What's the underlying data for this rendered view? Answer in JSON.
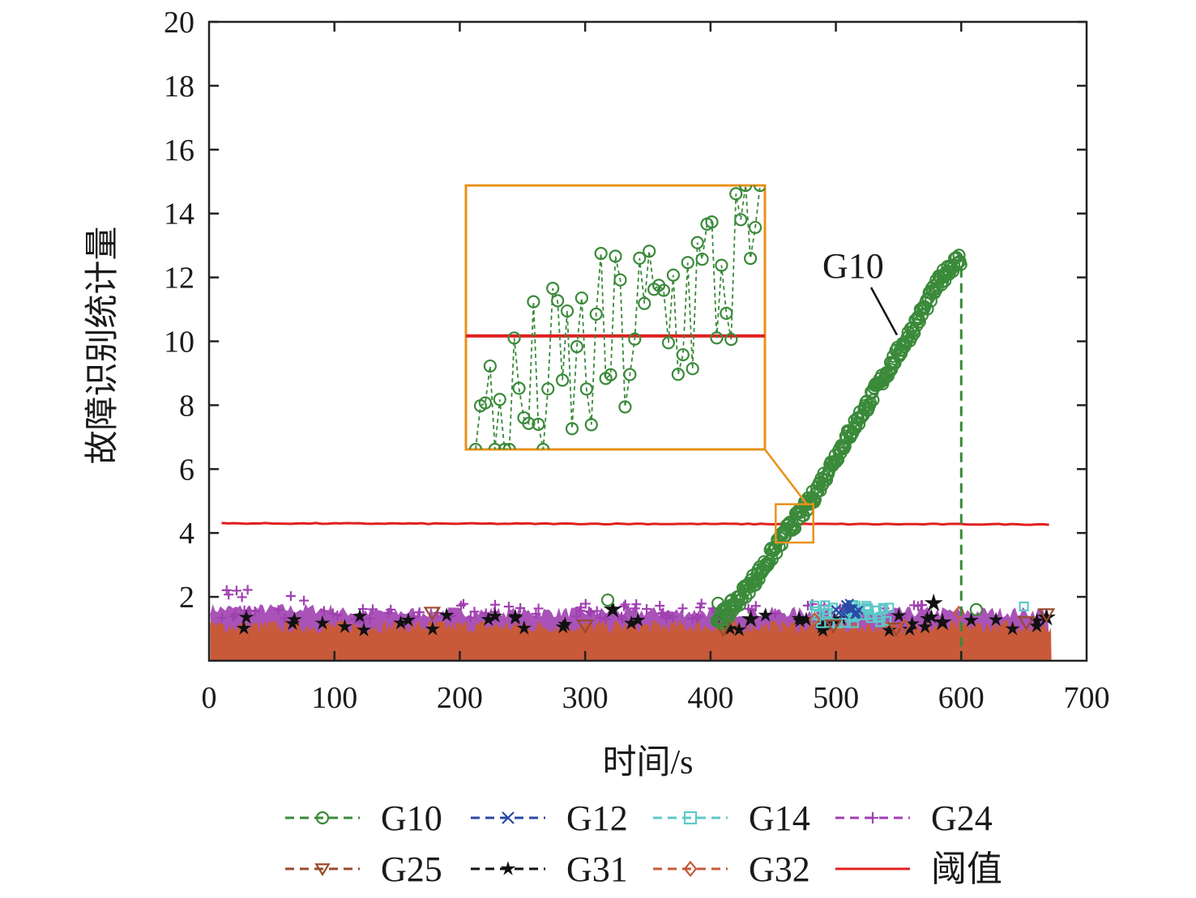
{
  "chart_data": {
    "type": "line",
    "title": "",
    "xlabel": "时间/s",
    "ylabel": "故障识别统计量",
    "xlim": [
      0,
      700
    ],
    "ylim": [
      0,
      20
    ],
    "xticks": [
      0,
      100,
      200,
      300,
      400,
      500,
      600,
      700
    ],
    "yticks": [
      2,
      4,
      6,
      8,
      10,
      12,
      14,
      16,
      18,
      20
    ],
    "xtick_labels": [
      "0",
      "100",
      "200",
      "300",
      "400",
      "500",
      "600",
      "700"
    ],
    "ytick_labels": [
      "2",
      "4",
      "6",
      "8",
      "10",
      "12",
      "14",
      "16",
      "18",
      "20"
    ],
    "grid": false,
    "legend_position": "bottom",
    "series": [
      {
        "name": "G10",
        "color": "#3a8a3a",
        "marker": "circle",
        "line": "dashed",
        "x": [
          0,
          100,
          200,
          300,
          400,
          410,
          420,
          440,
          460,
          480,
          500,
          520,
          540,
          560,
          580,
          590,
          600
        ],
        "y": [
          0.9,
          0.9,
          0.95,
          0.9,
          1.2,
          1.4,
          1.8,
          2.8,
          4.0,
          5.0,
          6.4,
          7.7,
          9.0,
          10.3,
          11.7,
          12.3,
          12.6
        ],
        "note": "statistic rises linearly after t≈410s and crosses threshold near t≈465s"
      },
      {
        "name": "G12",
        "color": "#2a4aa8",
        "marker": "x",
        "line": "dashed",
        "x": [
          500,
          505,
          510,
          520
        ],
        "y": [
          1.8,
          1.5,
          1.4,
          1.6
        ]
      },
      {
        "name": "G14",
        "color": "#5cc8c8",
        "marker": "square",
        "line": "dashed",
        "x": [
          480,
          500,
          520,
          540,
          650
        ],
        "y": [
          1.8,
          1.5,
          1.7,
          1.9,
          1.7
        ]
      },
      {
        "name": "G24",
        "color": "#a040b0",
        "marker": "plus",
        "line": "dashed",
        "x": [
          0,
          50,
          80,
          150,
          250,
          350,
          400,
          450,
          480,
          580
        ],
        "y": [
          2.3,
          1.9,
          2.4,
          1.6,
          1.6,
          1.7,
          1.6,
          1.5,
          1.2,
          2.0
        ]
      },
      {
        "name": "G25",
        "color": "#9a4a2a",
        "marker": "triangle-down",
        "line": "dashed",
        "x": [
          175,
          300,
          650,
          670
        ],
        "y": [
          1.5,
          1.1,
          1.2,
          1.4
        ]
      },
      {
        "name": "G31",
        "color": "#111111",
        "marker": "star",
        "line": "dashed",
        "x": [
          320,
          430,
          580,
          670
        ],
        "y": [
          1.6,
          1.3,
          1.8,
          1.3
        ]
      },
      {
        "name": "G32",
        "color": "#c85a3a",
        "marker": "diamond",
        "line": "dashed",
        "x": [
          0,
          100,
          200,
          300,
          400,
          500,
          600,
          670
        ],
        "y": [
          0.9,
          1.0,
          0.9,
          1.0,
          0.9,
          1.0,
          1.1,
          0.9
        ]
      },
      {
        "name": "阈值",
        "color": "#e02020",
        "marker": "none",
        "line": "solid",
        "x": [
          10,
          670
        ],
        "y": [
          4.3,
          4.27
        ]
      }
    ],
    "annotations": [
      {
        "text": "G10",
        "target": "G10",
        "at": [
          550,
          10.3
        ]
      },
      {
        "type": "vertical-dashed-line",
        "series": "G10",
        "x": 600,
        "from_y": 0,
        "to_y": 12.3
      }
    ],
    "inset": {
      "description": "zoom of G10 near threshold crossing",
      "source_xrange": [
        452,
        482
      ],
      "source_yrange": [
        3.7,
        4.9
      ]
    },
    "legend": [
      {
        "label": "G10",
        "marker": "circle",
        "color": "#3a8a3a"
      },
      {
        "label": "G12",
        "marker": "x",
        "color": "#2a4aa8"
      },
      {
        "label": "G14",
        "marker": "square",
        "color": "#5cc8c8"
      },
      {
        "label": "G24",
        "marker": "plus",
        "color": "#a040b0"
      },
      {
        "label": "G25",
        "marker": "triangle-down",
        "color": "#9a4a2a"
      },
      {
        "label": "G31",
        "marker": "star",
        "color": "#111111"
      },
      {
        "label": "G32",
        "marker": "diamond",
        "color": "#c85a3a"
      },
      {
        "label": "阈值",
        "marker": "line",
        "color": "#e02020"
      }
    ]
  }
}
